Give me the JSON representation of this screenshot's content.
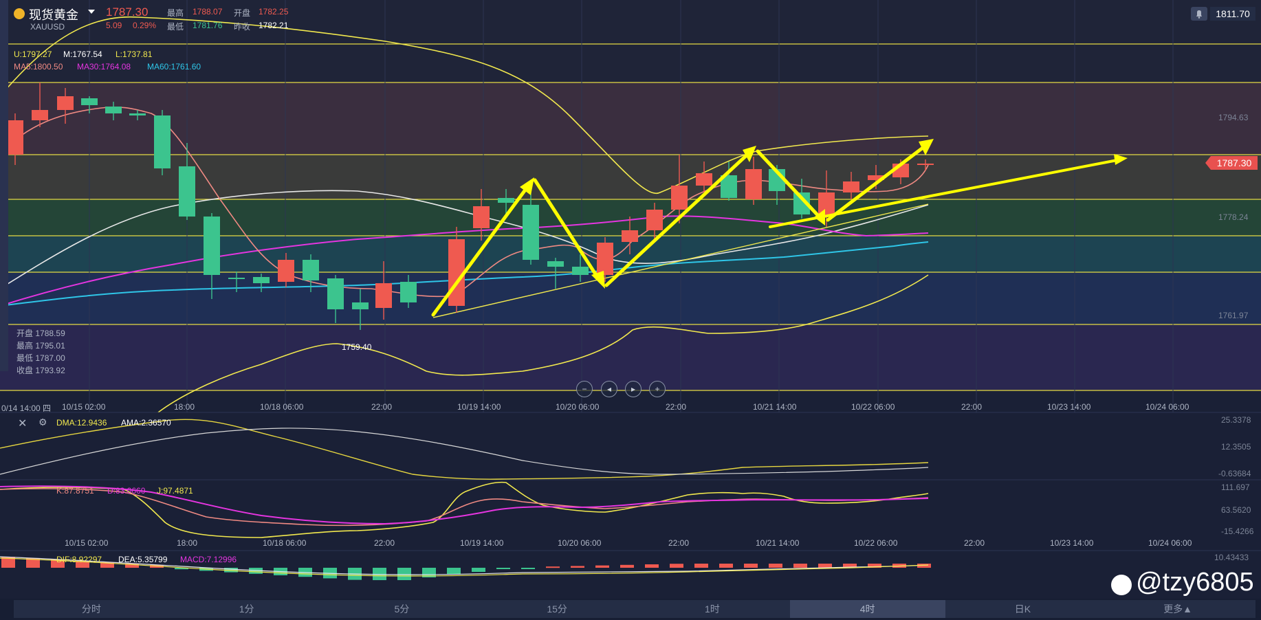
{
  "header": {
    "title": "现货黄金",
    "symbol": "XAUUSD",
    "price": "1787.30",
    "change": "5.09",
    "change_pct": "0.29%",
    "high_label": "最高",
    "high": "1788.07",
    "open_label": "开盘",
    "open": "1782.25",
    "low_label": "最低",
    "low": "1781.76",
    "prev_close_label": "昨收",
    "prev_close": "1782.21",
    "alert_value": "1811.70"
  },
  "indicators_main": {
    "boll_u": "U:1797.27",
    "boll_m": "M:1767.54",
    "boll_l": "L:1737.81",
    "ma_overlap": "MA5:1800.50",
    "ma30": "MA30:1764.08",
    "ma60": "MA60:1761.60"
  },
  "ohlc_box": {
    "open_label": "开盘",
    "open": "1788.59",
    "high_label": "最高",
    "high": "1795.01",
    "low_label": "最低",
    "low": "1787.00",
    "close_label": "收盘",
    "close": "1793.92"
  },
  "annotation_low": "1759.40",
  "price_badge": "1787.30",
  "right_axis": [
    "1794.63",
    "1778.24",
    "1761.97"
  ],
  "time_axis": [
    "0/14 14:00 四",
    "10/15 02:00",
    "18:00",
    "10/18 06:00",
    "22:00",
    "10/19 14:00",
    "10/20 06:00",
    "22:00",
    "10/21 14:00",
    "10/22 06:00",
    "22:00",
    "10/23 14:00",
    "10/24 06:00"
  ],
  "time_axis2": [
    "10/15 02:00",
    "18:00",
    "10/18 06:00",
    "22:00",
    "10/19 14:00",
    "10/20 06:00",
    "22:00",
    "10/21 14:00",
    "10/22 06:00",
    "22:00",
    "10/23 14:00",
    "10/24 06:00"
  ],
  "dma_panel": {
    "dma": "DMA:12.9436",
    "ama": "AMA:2.36570",
    "axis": [
      "25.3378",
      "12.3505",
      "-0.63684"
    ]
  },
  "kdj_panel": {
    "k": "K:87.8751",
    "d": "D:83.0660",
    "j": "J:97.4871",
    "axis": [
      "111.697",
      "63.5620",
      "-15.4266"
    ]
  },
  "macd_panel": {
    "dif": "DIF:8.92297",
    "dea": "DEA:5.35799",
    "macd": "MACD:7.12996",
    "axis": [
      "10.43433"
    ]
  },
  "tabs": [
    "分时",
    "1分",
    "5分",
    "15分",
    "1时",
    "4时",
    "日K",
    "更多▲"
  ],
  "active_tab": "4时",
  "watermark": "@tzy6805",
  "colors": {
    "up": "#ef5a50",
    "down": "#3cc48e",
    "boll": "#f2e94e",
    "ma30": "#e535e0",
    "ma60": "#2fc6e8",
    "mid": "#e8e8e8",
    "arrow": "#ffff00"
  }
}
